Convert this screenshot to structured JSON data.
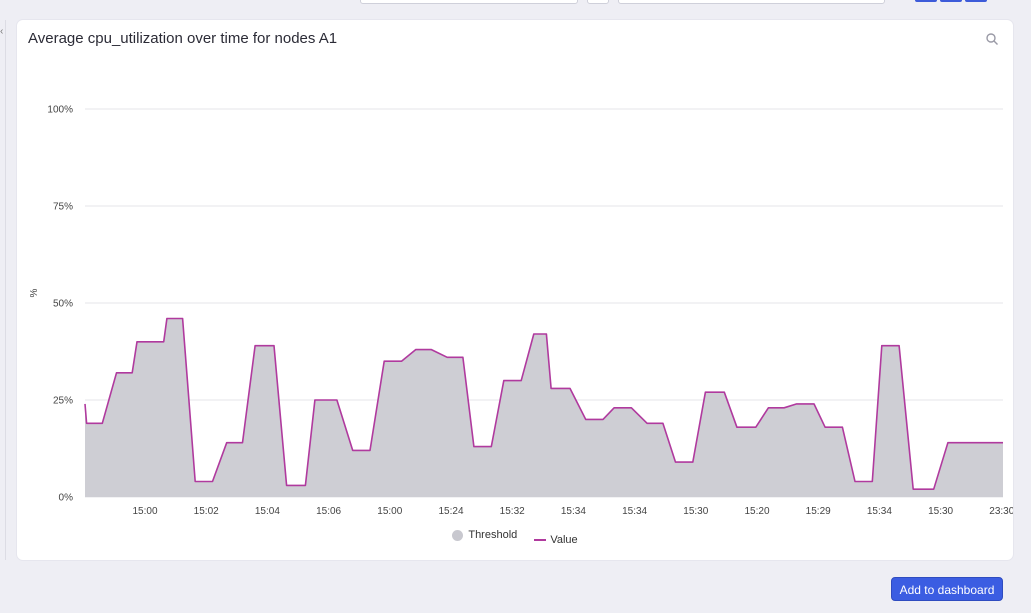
{
  "colors": {
    "threshold_fill": "#cbcbd2",
    "value_line": "#b03a9e",
    "grid": "#e4e4ea",
    "button": "#3b5de2"
  },
  "icons": {
    "zoom": "magnifier-icon",
    "collapse": "chevron-left-icon"
  },
  "card": {
    "title": "Average cpu_utilization over time for nodes A1"
  },
  "footer": {
    "add_button_label": "Add to dashboard"
  },
  "chart_data": {
    "type": "area",
    "title": "Average cpu_utilization over time for nodes A1",
    "ylabel": "%",
    "xlabel": "",
    "ylim": [
      0,
      100
    ],
    "yticks": [
      0,
      25,
      50,
      75,
      100
    ],
    "ytick_labels": [
      "0%",
      "25%",
      "50%",
      "75%",
      "100%"
    ],
    "xtick_labels": [
      "15:00",
      "15:02",
      "15:04",
      "15:06",
      "15:00",
      "15:24",
      "15:32",
      "15:34",
      "15:34",
      "15:30",
      "15:20",
      "15:29",
      "15:34",
      "15:30",
      "23:30"
    ],
    "grid": true,
    "legend": {
      "position": "bottom-center",
      "entries": [
        "Threshold",
        "Value"
      ]
    },
    "series": [
      {
        "name": "Value",
        "x_index": [
          0,
          0.05,
          0.4,
          0.55,
          1,
          1.05,
          1.5,
          1.65,
          2,
          2.05,
          2.5,
          2.6,
          3.05,
          3.1,
          3.5,
          3.55,
          4,
          4.05,
          4.5,
          4.65,
          4.95,
          5,
          5.4,
          5.5,
          5.95,
          6,
          6.4,
          6.5,
          6.95,
          7,
          7.3,
          7.6,
          7.75,
          8,
          8.5,
          8.55,
          9,
          9.05,
          9.5,
          9.55,
          10,
          10.05,
          10.5,
          10.6,
          10.95,
          11,
          11.5,
          11.6,
          11.95,
          12,
          12.35,
          12.4,
          12.85,
          12.9,
          13.3,
          13.35,
          13.8,
          13.85,
          14.25,
          14.3,
          14.6,
          14.65,
          14.8,
          14.9,
          15.35,
          15.4,
          15.9,
          15.95,
          16.4,
          16.45,
          16.8,
          16.85,
          17.3,
          17.35,
          17.85,
          17.9,
          18.3,
          18.35,
          18.75,
          18.8,
          19.25,
          19.3,
          19.7,
          19.75,
          20.25,
          20.3,
          20.7,
          20.75,
          21.25,
          21.3,
          21.7,
          21.75,
          22.1,
          22.2,
          22.6,
          22.65,
          23.1,
          23.15,
          23.5,
          23.55,
          24,
          24.05,
          24.45,
          24.5,
          24.95,
          25,
          25.3,
          25.35,
          25.8,
          25.85,
          26.3,
          26.35,
          26.9,
          26.95,
          27.4,
          27.45,
          27.8,
          27.85,
          28.3,
          28.35,
          28.8,
          28.85,
          29.15
        ],
        "values": [
          24,
          19,
          19,
          19,
          32,
          32,
          32,
          40,
          40,
          40,
          40,
          46,
          46,
          46,
          4,
          4,
          4,
          4,
          14,
          14,
          14,
          14,
          39,
          39,
          39,
          39,
          3,
          3,
          3,
          3,
          25,
          25,
          25,
          25,
          12,
          12,
          12,
          12,
          35,
          35,
          35,
          35,
          38,
          38,
          38,
          38,
          36,
          36,
          36,
          36,
          13,
          13,
          13,
          13,
          30,
          30,
          30,
          30,
          42,
          42,
          42,
          42,
          28,
          28,
          28,
          28,
          20,
          20,
          20,
          20,
          23,
          23,
          23,
          23,
          19,
          19,
          19,
          19,
          9,
          9,
          9,
          9,
          27,
          27,
          27,
          27,
          18,
          18,
          18,
          18,
          23,
          23,
          23,
          23,
          24,
          24,
          24,
          24,
          18,
          18,
          18,
          18,
          4,
          4,
          4,
          4,
          39,
          39,
          39,
          39,
          2,
          2,
          2,
          2,
          14,
          14,
          14,
          14,
          14,
          14,
          14,
          14,
          14
        ]
      }
    ]
  }
}
